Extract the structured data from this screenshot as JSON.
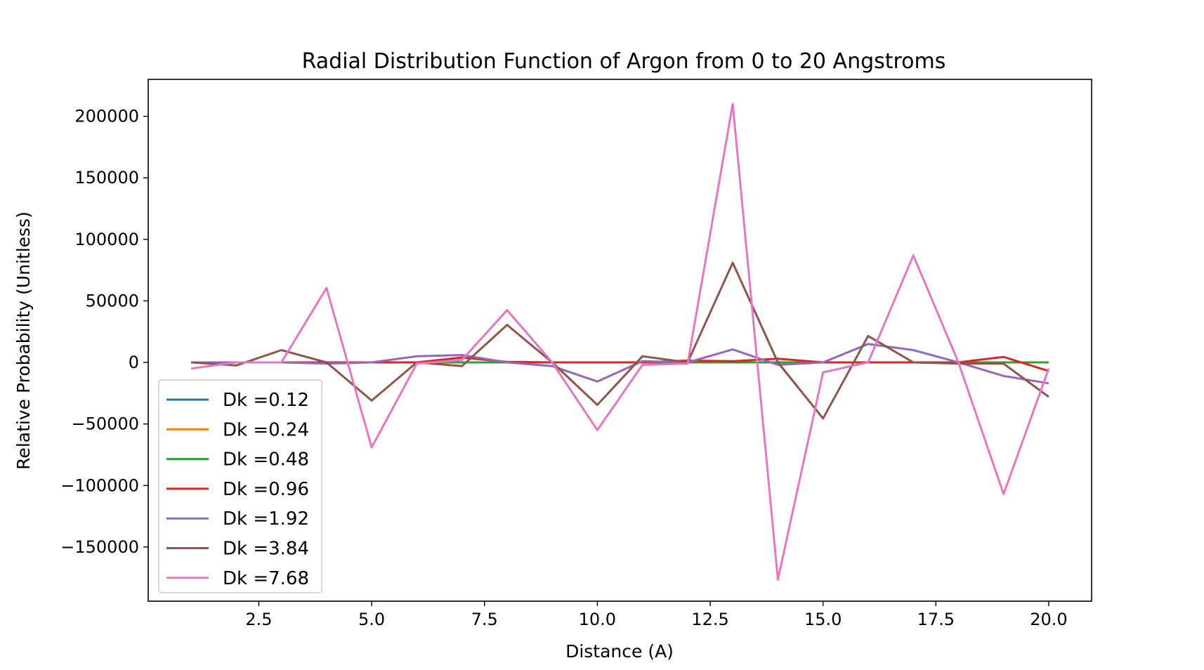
{
  "chart_data": {
    "type": "line",
    "title": "Radial Distribution Function of Argon from 0 to 20 Angstroms",
    "xlabel": "Distance (A)",
    "ylabel": "Relative Probability (Unitless)",
    "xlim": [
      0.05,
      20.95
    ],
    "ylim": [
      -194000,
      230000
    ],
    "x_ticks": [
      2.5,
      5.0,
      7.5,
      10.0,
      12.5,
      15.0,
      17.5,
      20.0
    ],
    "x_tick_labels": [
      "2.5",
      "5.0",
      "7.5",
      "10.0",
      "12.5",
      "15.0",
      "17.5",
      "20.0"
    ],
    "y_ticks": [
      -150000,
      -100000,
      -50000,
      0,
      50000,
      100000,
      150000,
      200000
    ],
    "y_tick_labels": [
      "−150000",
      "−100000",
      "−50000",
      "0",
      "50000",
      "100000",
      "150000",
      "200000"
    ],
    "grid": false,
    "legend_position": "lower-left",
    "x": [
      1,
      2,
      3,
      4,
      5,
      6,
      7,
      8,
      9,
      10,
      11,
      12,
      13,
      14,
      15,
      16,
      17,
      18,
      19,
      20
    ],
    "series": [
      {
        "name": "Dk =0.12",
        "color": "#1f77b4",
        "values": [
          0,
          0,
          0,
          0,
          0,
          0,
          0,
          0,
          0,
          0,
          0,
          0,
          0,
          0,
          0,
          0,
          0,
          0,
          0,
          0
        ]
      },
      {
        "name": "Dk =0.24",
        "color": "#ff7f0e",
        "values": [
          0,
          0,
          0,
          0,
          0,
          0,
          0,
          0,
          0,
          0,
          0,
          0,
          0,
          0,
          0,
          0,
          0,
          0,
          0,
          0
        ]
      },
      {
        "name": "Dk =0.48",
        "color": "#2ca02c",
        "values": [
          0,
          0,
          0,
          0,
          0,
          0,
          0,
          0,
          0,
          0,
          0,
          0,
          0,
          0,
          0,
          0,
          0,
          0,
          0,
          0
        ]
      },
      {
        "name": "Dk =0.96",
        "color": "#d62728",
        "values": [
          0,
          0,
          0,
          0,
          0,
          0,
          4000,
          500,
          0,
          0,
          0,
          1500,
          1000,
          3000,
          0,
          0,
          0,
          0,
          4500,
          -7000
        ]
      },
      {
        "name": "Dk =1.92",
        "color": "#9467bd",
        "values": [
          0,
          0,
          0,
          -1000,
          0,
          5000,
          6000,
          0,
          -3000,
          -15500,
          1000,
          0,
          10500,
          -2000,
          0,
          15000,
          10000,
          0,
          -11000,
          -17000
        ]
      },
      {
        "name": "Dk =3.84",
        "color": "#8c564b",
        "values": [
          0,
          -2500,
          10000,
          0,
          -31000,
          0,
          -3000,
          30500,
          0,
          -34500,
          5000,
          0,
          81000,
          0,
          -45500,
          21500,
          0,
          -1000,
          -1000,
          -28000
        ]
      },
      {
        "name": "Dk =7.68",
        "color": "#e377c2",
        "values": [
          -5000,
          0,
          0,
          60500,
          -69000,
          -1000,
          2000,
          42500,
          0,
          -55000,
          -2000,
          -1000,
          210000,
          -176500,
          -8000,
          0,
          87000,
          0,
          -107000,
          -5000
        ]
      }
    ]
  }
}
